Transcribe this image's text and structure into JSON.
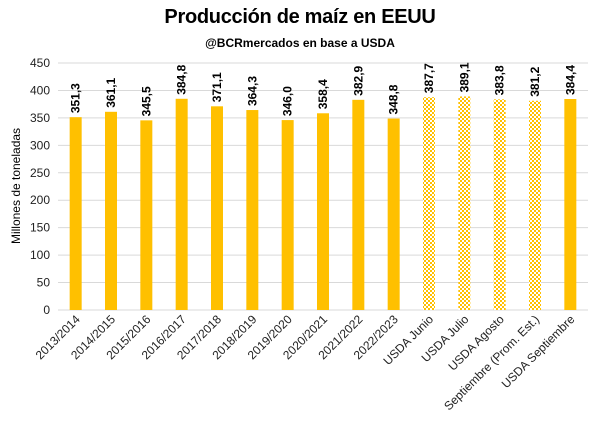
{
  "chart_data": {
    "type": "bar",
    "title": "Producción de maíz en EEUU",
    "subtitle": "@BCRmercados  en base a USDA",
    "ylabel": "Millones de toneladas",
    "xlabel": "",
    "ylim": [
      0,
      450
    ],
    "yticks": [
      0,
      50,
      100,
      150,
      200,
      250,
      300,
      350,
      400,
      450
    ],
    "grid": true,
    "legend": "none",
    "bar_color": "#FFC000",
    "categories": [
      "2013/2014",
      "2014/2015",
      "2015/2016",
      "2016/2017",
      "2017/2018",
      "2018/2019",
      "2019/2020",
      "2020/2021",
      "2021/2022",
      "2022/2023",
      "USDA Junio",
      "USDA Julio",
      "USDA Agosto",
      "Septiembre (Prom. Est.)",
      "USDA Septiembre"
    ],
    "values": [
      351.3,
      361.1,
      345.5,
      384.8,
      371.1,
      364.3,
      346.0,
      358.4,
      382.9,
      348.8,
      387.7,
      389.1,
      383.8,
      381.2,
      384.4
    ],
    "value_labels": [
      "351,3",
      "361,1",
      "345,5",
      "384,8",
      "371,1",
      "364,3",
      "346,0",
      "358,4",
      "382,9",
      "348,8",
      "387,7",
      "389,1",
      "383,8",
      "381,2",
      "384,4"
    ],
    "patterned": [
      false,
      false,
      false,
      false,
      false,
      false,
      false,
      false,
      false,
      false,
      true,
      true,
      true,
      true,
      false
    ]
  }
}
